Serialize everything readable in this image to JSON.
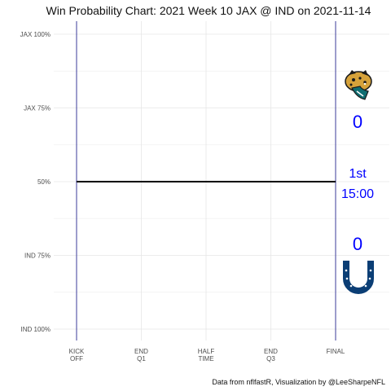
{
  "chart_data": {
    "type": "line",
    "title": "Win Probability Chart: 2021 Week 10 JAX @ IND on 2021-11-14",
    "caption": "Data from nflfastR, Visualization by @LeeSharpeNFL",
    "xlabel": "",
    "ylabel": "",
    "x_categories": [
      "KICK\nOFF",
      "END\nQ1",
      "HALF\nTIME",
      "END\nQ3",
      "FINAL"
    ],
    "xlim": [
      0,
      4
    ],
    "ylim": [
      0,
      100
    ],
    "y_ticks": [
      {
        "value": 100,
        "label": "JAX 100%"
      },
      {
        "value": 75,
        "label": "JAX 75%"
      },
      {
        "value": 50,
        "label": "50%"
      },
      {
        "value": 25,
        "label": "IND 75%"
      },
      {
        "value": 0,
        "label": "IND 100%"
      }
    ],
    "grid": true,
    "series": [
      {
        "values": [
          {
            "x": 0,
            "y": 50
          },
          {
            "x": 4,
            "y": 50
          }
        ],
        "color": "#000000"
      }
    ],
    "annotations": {
      "away_team": "JAX",
      "home_team": "IND",
      "away_score": "0",
      "home_score": "0",
      "quarter": "1st",
      "clock": "15:00",
      "text_color": "#0000ff",
      "vline_color": "#3b3b9a"
    },
    "logos": {
      "away_icon": "jaguar-head-icon",
      "home_icon": "horseshoe-icon",
      "home_color": "#0b3e75"
    }
  }
}
